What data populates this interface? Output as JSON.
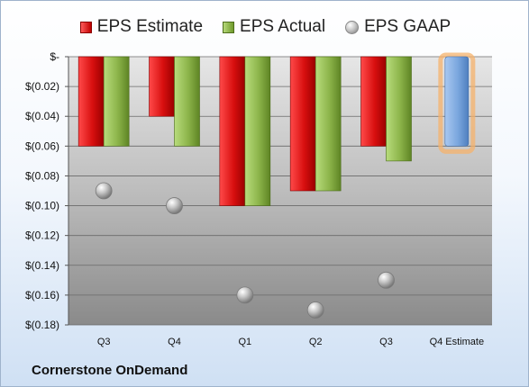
{
  "legend": {
    "estimate": "EPS Estimate",
    "actual": "EPS Actual",
    "gaap": "EPS GAAP"
  },
  "company": "Cornerstone OnDemand",
  "chart_data": {
    "type": "bar",
    "categories": [
      "Q3",
      "Q4",
      "Q1",
      "Q2",
      "Q3",
      "Q4 Estimate"
    ],
    "series": [
      {
        "name": "EPS Estimate",
        "kind": "bar",
        "color": "#c00000",
        "values": [
          -0.06,
          -0.04,
          -0.1,
          -0.09,
          -0.06,
          null
        ]
      },
      {
        "name": "EPS Actual",
        "kind": "bar",
        "color": "#77a035",
        "values": [
          -0.06,
          -0.06,
          -0.1,
          -0.09,
          -0.07,
          null
        ]
      },
      {
        "name": "EPS GAAP",
        "kind": "marker",
        "color": "#a0a0a0",
        "values": [
          -0.09,
          -0.1,
          -0.16,
          -0.17,
          -0.15,
          null
        ]
      },
      {
        "name": "Q4 Estimate",
        "kind": "bar",
        "color": "#6b9bd6",
        "highlight": "#f6b26b",
        "values": [
          null,
          null,
          null,
          null,
          null,
          -0.06
        ]
      }
    ],
    "yticks": [
      "$-",
      "$(0.02)",
      "$(0.04)",
      "$(0.06)",
      "$(0.08)",
      "$(0.10)",
      "$(0.12)",
      "$(0.14)",
      "$(0.16)",
      "$(0.18)"
    ],
    "ylim": [
      -0.18,
      0
    ],
    "grid": true,
    "legend_position": "top"
  }
}
